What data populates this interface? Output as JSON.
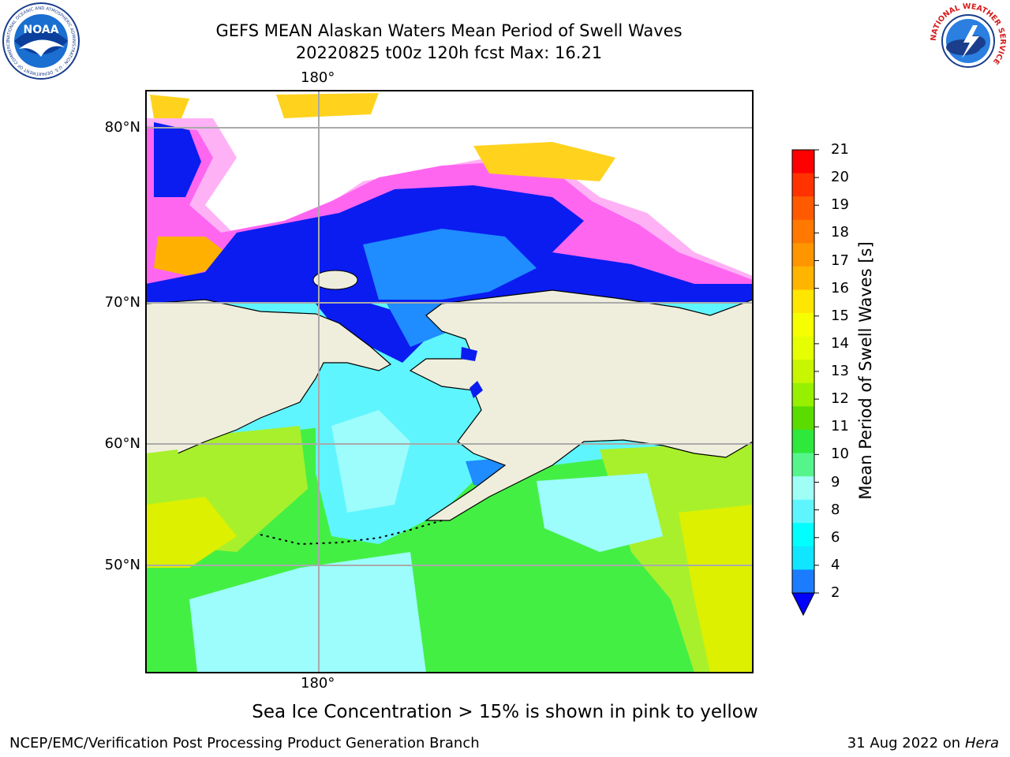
{
  "header": {
    "title_line1": "GEFS MEAN Alaskan Waters Mean Period of Swell Waves",
    "title_line2": "20220825 t00z 120h fcst   Max: 16.21"
  },
  "logos": {
    "left": "NOAA",
    "left_ring_text": "NATIONAL OCEANIC AND ATMOSPHERIC ADMINISTRATION · U.S. DEPARTMENT OF COMMERCE",
    "right_ring_text": "NATIONAL WEATHER SERVICE"
  },
  "map": {
    "lon_labels": [
      "180°",
      "180°"
    ],
    "lat_labels": [
      "80°N",
      "70°N",
      "60°N",
      "50°N"
    ],
    "colors": {
      "land": "#efeedc",
      "ice": "#ffffff",
      "grid": "#aaaaaa",
      "deep_blue": "#0a1cf0",
      "light_blue": "#1f8cff",
      "cyan": "#5ff5ff",
      "light_cyan": "#9dfcfc",
      "green": "#44ef44",
      "lime": "#a8f02c",
      "yellow_green": "#dcf000"
    }
  },
  "colorbar": {
    "label": "Mean Period of Swell Waves [s]",
    "ticks": [
      "21",
      "20",
      "19",
      "18",
      "17",
      "16",
      "15",
      "14",
      "13",
      "12",
      "11",
      "10",
      "9",
      "8",
      "6",
      "4",
      "2"
    ],
    "colors_top_to_bottom": [
      "#ff0000",
      "#ff3200",
      "#ff5a00",
      "#ff7800",
      "#ff9600",
      "#ffb400",
      "#ffe600",
      "#f5ff00",
      "#e6ff00",
      "#c8f500",
      "#96f000",
      "#5adc00",
      "#2ee83c",
      "#55f58c",
      "#a0fff5",
      "#5ff5ff",
      "#00ffff",
      "#10e6ff",
      "#1b7cff"
    ],
    "extend_color": "#0000ff"
  },
  "footer": {
    "note": "Sea Ice Concentration > 15% is shown in pink to yellow",
    "credit": "NCEP/EMC/Verification Post Processing Product Generation Branch",
    "date": "31 Aug 2022 on",
    "host": "Hera"
  }
}
